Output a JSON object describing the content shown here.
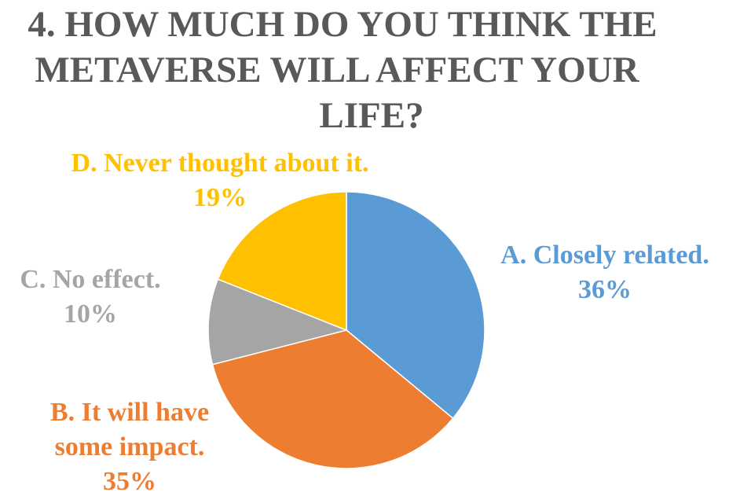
{
  "chart_data": {
    "type": "pie",
    "title_lines": [
      "4. HOW MUCH DO YOU THINK THE",
      "METAVERSE WILL AFFECT YOUR",
      "LIFE?"
    ],
    "slices": [
      {
        "label": "A. Closely related.",
        "label_lines": [
          "A. Closely related."
        ],
        "value": 36,
        "value_text": "36%",
        "color": "#5b9bd5"
      },
      {
        "label": "B. It will have some impact.",
        "label_lines": [
          "B. It will have",
          "some impact."
        ],
        "value": 35,
        "value_text": "35%",
        "color": "#ed7d31"
      },
      {
        "label": "C. No effect.",
        "label_lines": [
          "C. No effect."
        ],
        "value": 10,
        "value_text": "10%",
        "color": "#a5a5a5"
      },
      {
        "label": "D. Never thought about it.",
        "label_lines": [
          "D. Never thought about it."
        ],
        "value": 19,
        "value_text": "19%",
        "color": "#ffc000"
      }
    ],
    "start_angle": "12 o'clock",
    "direction": "clockwise",
    "legend": "none",
    "title_color": "#595959",
    "border_color": "#ffffff"
  }
}
